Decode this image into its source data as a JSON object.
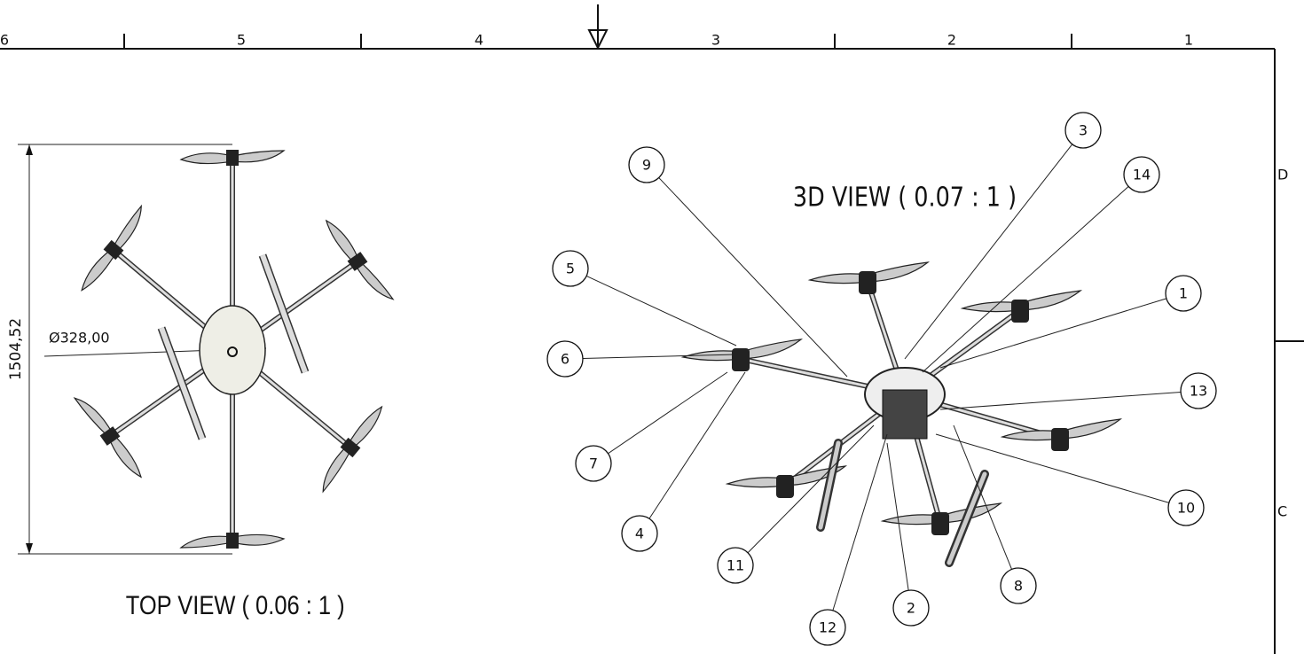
{
  "border": {
    "columns": [
      "6",
      "5",
      "4",
      "3",
      "2",
      "1"
    ],
    "rows": [
      "D",
      "C"
    ]
  },
  "top_view": {
    "title": "TOP VIEW ( 0.06 : 1 )",
    "dimensions": {
      "height": "1504,52",
      "diameter": "Ø328,00"
    }
  },
  "view_3d": {
    "title": "3D VIEW ( 0.07 : 1 )",
    "balloons": [
      "9",
      "3",
      "14",
      "5",
      "1",
      "6",
      "13",
      "7",
      "10",
      "4",
      "11",
      "8",
      "2",
      "12"
    ]
  }
}
